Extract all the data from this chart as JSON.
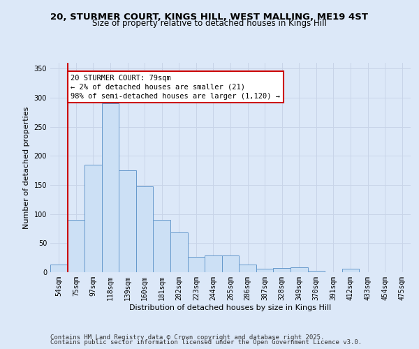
{
  "title_line1": "20, STURMER COURT, KINGS HILL, WEST MALLING, ME19 4ST",
  "title_line2": "Size of property relative to detached houses in Kings Hill",
  "xlabel": "Distribution of detached houses by size in Kings Hill",
  "ylabel": "Number of detached properties",
  "bins": [
    "54sqm",
    "75sqm",
    "97sqm",
    "118sqm",
    "139sqm",
    "160sqm",
    "181sqm",
    "202sqm",
    "223sqm",
    "244sqm",
    "265sqm",
    "286sqm",
    "307sqm",
    "328sqm",
    "349sqm",
    "370sqm",
    "391sqm",
    "412sqm",
    "433sqm",
    "454sqm",
    "475sqm"
  ],
  "values": [
    13,
    90,
    185,
    290,
    175,
    148,
    90,
    68,
    27,
    29,
    29,
    13,
    6,
    7,
    8,
    3,
    0,
    6,
    0,
    0,
    0
  ],
  "bar_color": "#cce0f5",
  "bar_edge_color": "#6699cc",
  "red_line_color": "#cc0000",
  "annotation_text": "20 STURMER COURT: 79sqm\n← 2% of detached houses are smaller (21)\n98% of semi-detached houses are larger (1,120) →",
  "annotation_box_color": "#ffffff",
  "annotation_box_edge": "#cc0000",
  "ylim": [
    0,
    360
  ],
  "yticks": [
    0,
    50,
    100,
    150,
    200,
    250,
    300,
    350
  ],
  "grid_color": "#c8d4e8",
  "bg_color": "#dce8f8",
  "footer_line1": "Contains HM Land Registry data © Crown copyright and database right 2025.",
  "footer_line2": "Contains public sector information licensed under the Open Government Licence v3.0.",
  "title_fontsize": 9.5,
  "subtitle_fontsize": 8.5,
  "axis_label_fontsize": 8,
  "tick_fontsize": 7,
  "annotation_fontsize": 7.5,
  "footer_fontsize": 6.5
}
